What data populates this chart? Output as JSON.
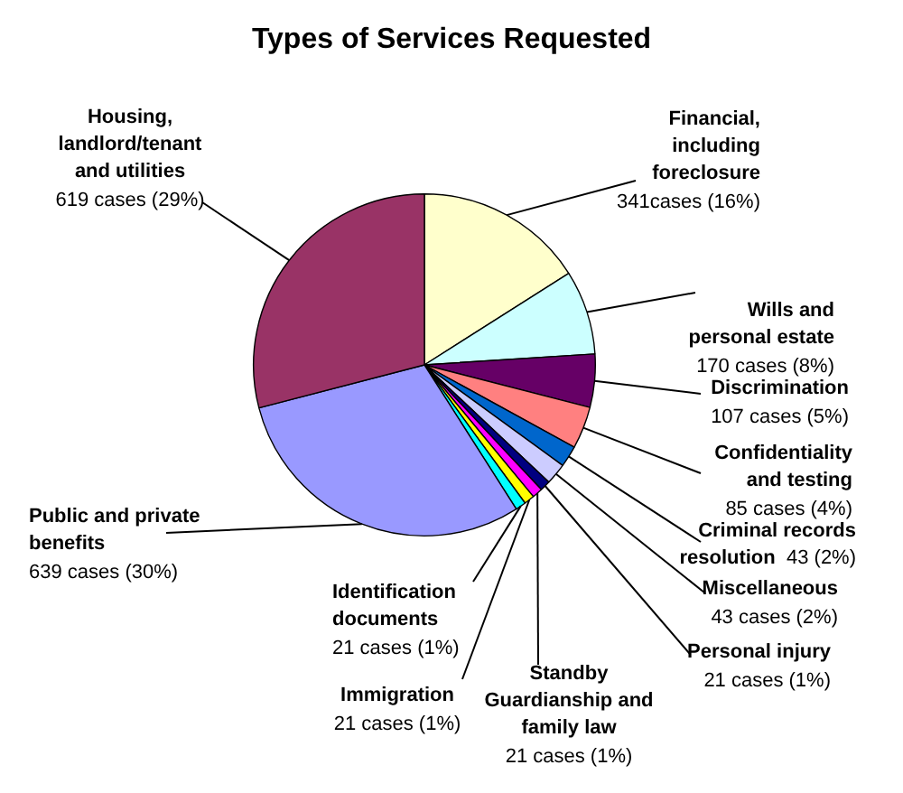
{
  "chart_data": {
    "type": "pie",
    "title": "Types of Services Requested",
    "categories": [
      "Financial, including foreclosure",
      "Wills and personal estate",
      "Discrimination",
      "Confidentiality and testing",
      "Criminal records resolution",
      "Miscellaneous",
      "Personal injury",
      "Standby Guardianship and family law",
      "Immigration",
      "Identification documents",
      "Public and private benefits",
      "Housing, landlord/tenant and utilities"
    ],
    "values": [
      341,
      170,
      107,
      85,
      43,
      43,
      21,
      21,
      21,
      21,
      639,
      619
    ],
    "value_labels": [
      "341cases (16%)",
      "170 cases (8%)",
      "107 cases (5%)",
      "85 cases (4%)",
      "43 (2%)",
      "43 cases (2%)",
      "21 cases (1%)",
      "21 cases (1%)",
      "21 cases (1%)",
      "21 cases (1%)",
      "639 cases (30%)",
      "619 cases (29%)"
    ],
    "colors": [
      "#ffffcc",
      "#ccffff",
      "#660066",
      "#ff8080",
      "#0066cc",
      "#ccccff",
      "#000080",
      "#ff00ff",
      "#ffff00",
      "#00ffff",
      "#9999ff",
      "#993366"
    ],
    "legend": false
  }
}
